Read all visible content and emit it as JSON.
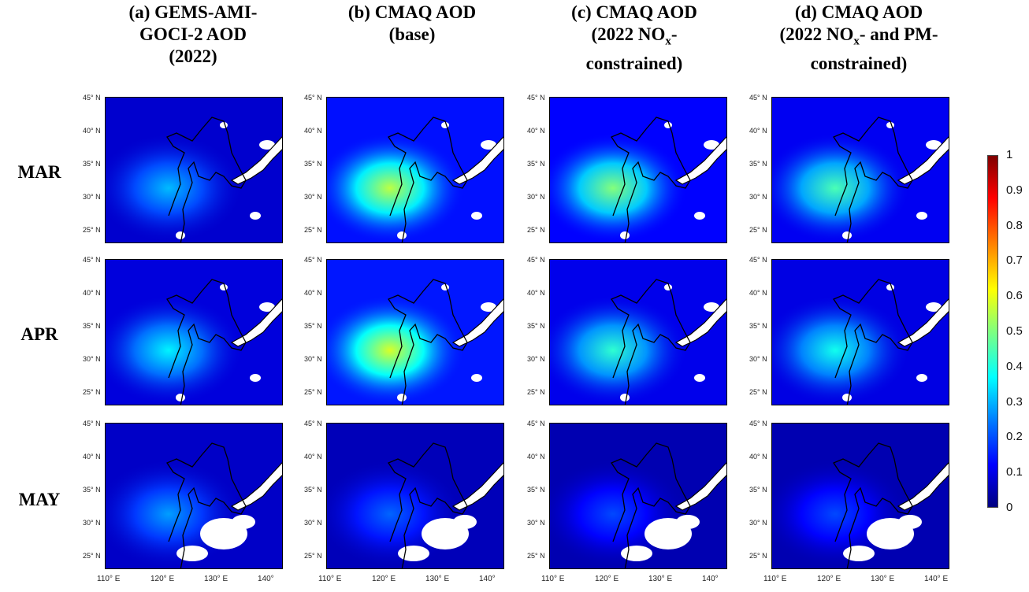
{
  "column_titles": [
    {
      "line1": "(a) GEMS-AMI-",
      "line2": "GOCI-2 AOD",
      "line3": "(2022)"
    },
    {
      "line1": "(b) CMAQ AOD",
      "line2": "(base)",
      "line3": ""
    },
    {
      "line1": "(c) CMAQ AOD",
      "line2a": "(2022 NO",
      "line2sub": "x",
      "line2b": "-",
      "line3": "constrained)"
    },
    {
      "line1": "(d) CMAQ AOD",
      "line2a": "(2022 NO",
      "line2sub": "x",
      "line2b": "- and PM-",
      "line3": "constrained)"
    }
  ],
  "row_labels": [
    "MAR",
    "APR",
    "MAY"
  ],
  "lat_ticks": [
    "45° N",
    "40° N",
    "35° N",
    "30° N",
    "25° N"
  ],
  "lon_ticks": [
    "110° E",
    "120° E",
    "130° E",
    "140°"
  ],
  "lon_ticks_last_col": [
    "110° E",
    "120° E",
    "130° E",
    "140° E"
  ],
  "colorbar": {
    "ticks": [
      "1",
      "0.9",
      "0.8",
      "0.7",
      "0.6",
      "0.5",
      "0.4",
      "0.3",
      "0.2",
      "0.1",
      "0"
    ],
    "colors": [
      "#00007f",
      "#0000ff",
      "#0080ff",
      "#00ffff",
      "#7fff7f",
      "#ffff00",
      "#ff8000",
      "#ff0000",
      "#7f0000"
    ]
  },
  "map_intensity": [
    [
      0.22,
      0.4,
      0.36,
      0.32
    ],
    [
      0.26,
      0.42,
      0.3,
      0.28
    ],
    [
      0.2,
      0.16,
      0.14,
      0.14
    ]
  ]
}
